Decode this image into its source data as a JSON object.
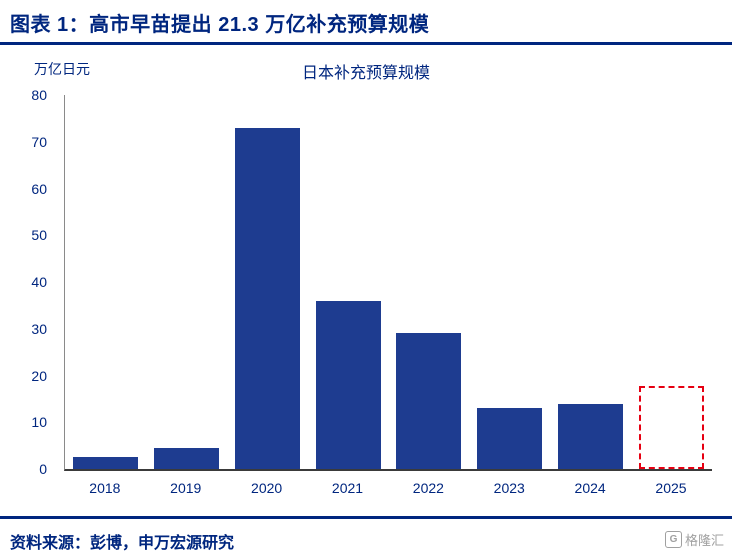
{
  "header": {
    "title": "图表 1：高市早苗提出 21.3 万亿补充预算规模"
  },
  "chart_data": {
    "type": "bar",
    "title": "日本补充预算规模",
    "unit_label": "万亿日元",
    "categories": [
      "2018",
      "2019",
      "2020",
      "2021",
      "2022",
      "2023",
      "2024",
      "2025"
    ],
    "values": [
      2.5,
      4.5,
      73,
      36,
      29,
      13,
      14,
      17.7
    ],
    "highlight_index": 7,
    "highlight_style": "dashed-red-outline-empty-fill",
    "ylim": [
      0,
      80
    ],
    "ytick_step": 10,
    "xlabel": "",
    "ylabel": "万亿日元",
    "grid": false,
    "legend": "none",
    "bar_color": "#1e3c90",
    "highlight_color": "#e60012",
    "accent_color": "#00267f"
  },
  "footer": {
    "source": "资料来源：彭博，申万宏源研究",
    "logo_text": "格隆汇",
    "logo_icon_glyph": "G"
  }
}
